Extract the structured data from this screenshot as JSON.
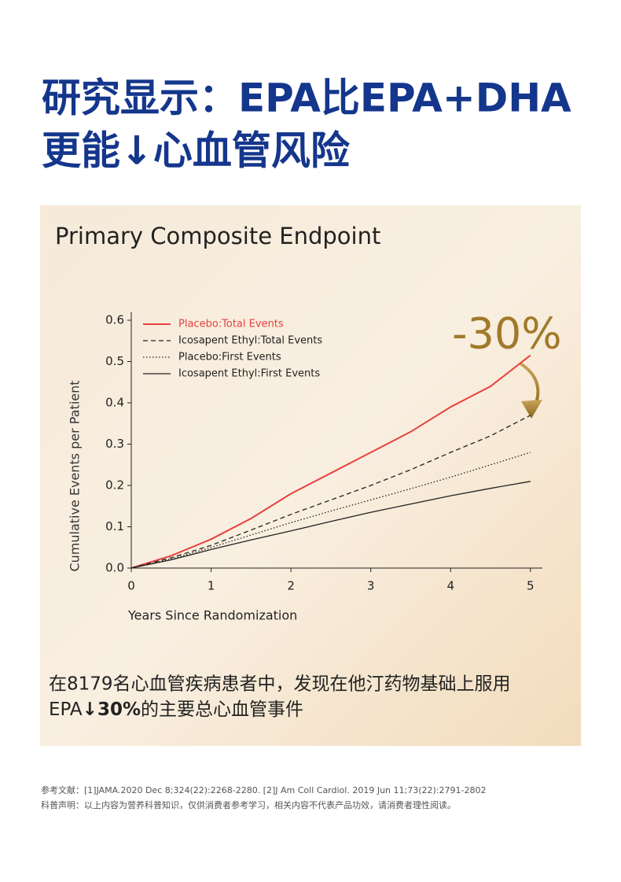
{
  "header": {
    "title_lines": [
      "研究显示：EPA比EPA+DHA",
      "更能↓心血管风险"
    ]
  },
  "chart_data": {
    "type": "line",
    "title": "Primary Composite Endpoint",
    "x_label": "Years Since Randomization",
    "y_label": "Cumulative Events per Patient",
    "x": [
      0,
      0.5,
      1,
      1.5,
      2,
      2.5,
      3,
      3.5,
      4,
      4.5,
      5
    ],
    "series": [
      {
        "name": "Placebo:Total Events",
        "color": "#e8413e",
        "style": "solid",
        "values": [
          0,
          0.03,
          0.07,
          0.12,
          0.18,
          0.23,
          0.28,
          0.33,
          0.39,
          0.44,
          0.515
        ]
      },
      {
        "name": "Icosapent Ethyl:Total Events",
        "color": "#222222",
        "style": "dashed",
        "values": [
          0,
          0.025,
          0.055,
          0.092,
          0.13,
          0.165,
          0.2,
          0.238,
          0.28,
          0.32,
          0.37
        ]
      },
      {
        "name": "Placebo:First Events",
        "color": "#222222",
        "style": "dotted",
        "values": [
          0,
          0.022,
          0.05,
          0.08,
          0.11,
          0.138,
          0.165,
          0.192,
          0.22,
          0.25,
          0.28
        ]
      },
      {
        "name": "Icosapent Ethyl:First Events",
        "color": "#222222",
        "style": "solid",
        "values": [
          0,
          0.02,
          0.045,
          0.068,
          0.09,
          0.113,
          0.135,
          0.155,
          0.175,
          0.193,
          0.21
        ]
      }
    ],
    "xlim": [
      0,
      5.15
    ],
    "ylim": [
      0,
      0.62
    ],
    "xticks": [
      0,
      1,
      2,
      3,
      4,
      5
    ],
    "yticks": [
      {
        "value": 0,
        "label": "0.0"
      },
      0.1,
      0.2,
      0.3,
      0.4,
      0.5,
      0.6
    ],
    "annotation": "-30%",
    "legend": "upper left"
  },
  "caption": {
    "line1": "在8179名心血管疾病患者中，发现在他汀药物基础上服用",
    "line2_start": "EPA",
    "line2_bold": "↓30%",
    "line2_end": "的主要总心血管事件"
  },
  "references": [
    "参考文献：[1]JAMA.2020 Dec 8;324(22):2268-2280. [2]J Am Coll Cardiol. 2019 Jun 11;73(22):2791-2802",
    "科普声明：以上内容为营养科普知识，仅供消费者参考学习，相关内容不代表产品功效，请消费者理性阅读。"
  ]
}
